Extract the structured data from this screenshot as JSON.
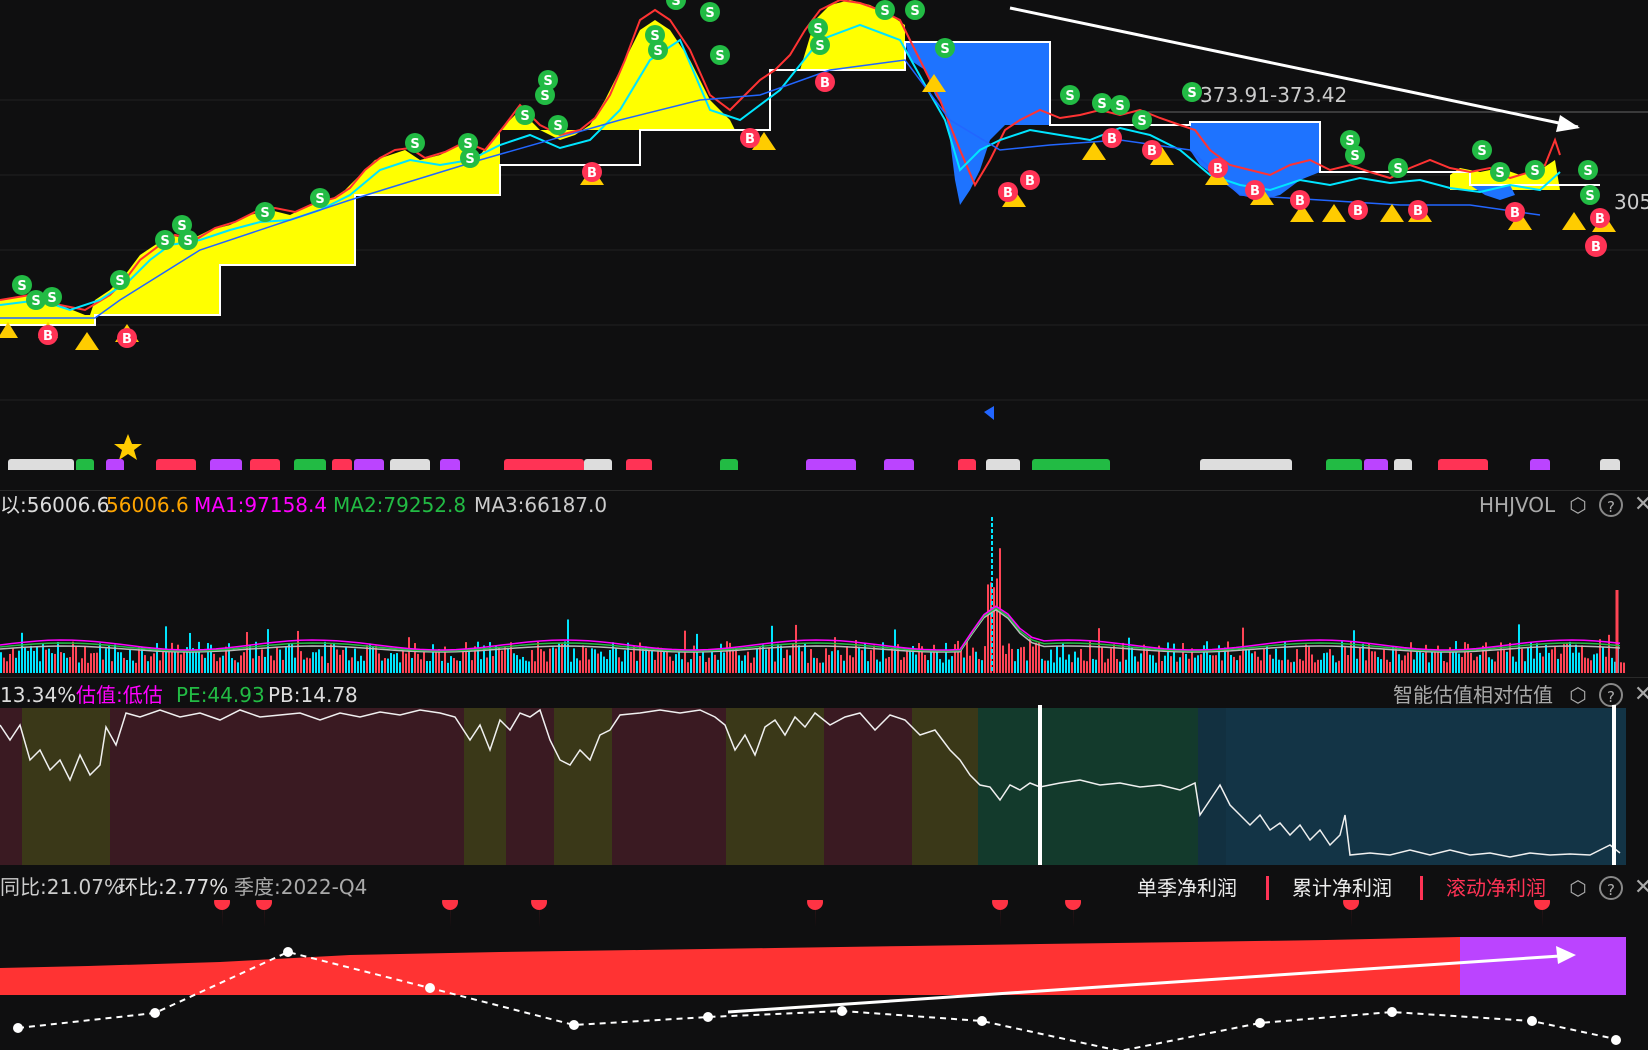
{
  "colors": {
    "background": "#0f0f10",
    "up_red": "#ff3333",
    "down_cyan": "#00e5ff",
    "yellow_fill": "#ffff00",
    "blue_fill": "#1e73ff",
    "magenta": "#ff00ff",
    "green": "#22bb44",
    "orange": "#ffa500",
    "purple": "#bb44ff",
    "white": "#ffffff"
  },
  "main_chart": {
    "price_range_label": "373.91-373.42",
    "right_edge_label": "305"
  },
  "volume_panel": {
    "label_vol": "以:56006.6",
    "label_val": "56006.6",
    "ma1": "MA1:97158.4",
    "ma2": "MA2:79252.8",
    "ma3": "MA3:66187.0",
    "indicator_name": "HHJVOL"
  },
  "valuation_panel": {
    "pct": "13.34%",
    "estimate": "估值:低估",
    "pe": "PE:44.93",
    "pb": "PB:14.78",
    "indicator_name": "智能估值相对估值"
  },
  "profit_panel": {
    "yoy": "同比:21.07%",
    "qoq": "环比:2.77%",
    "quarter": "季度:2022-Q4",
    "legend": [
      "单季净利润",
      "累计净利润",
      "滚动净利润"
    ]
  },
  "icons": {
    "settings": "hexagon-settings-icon",
    "help": "question-icon",
    "close": "close-icon"
  }
}
